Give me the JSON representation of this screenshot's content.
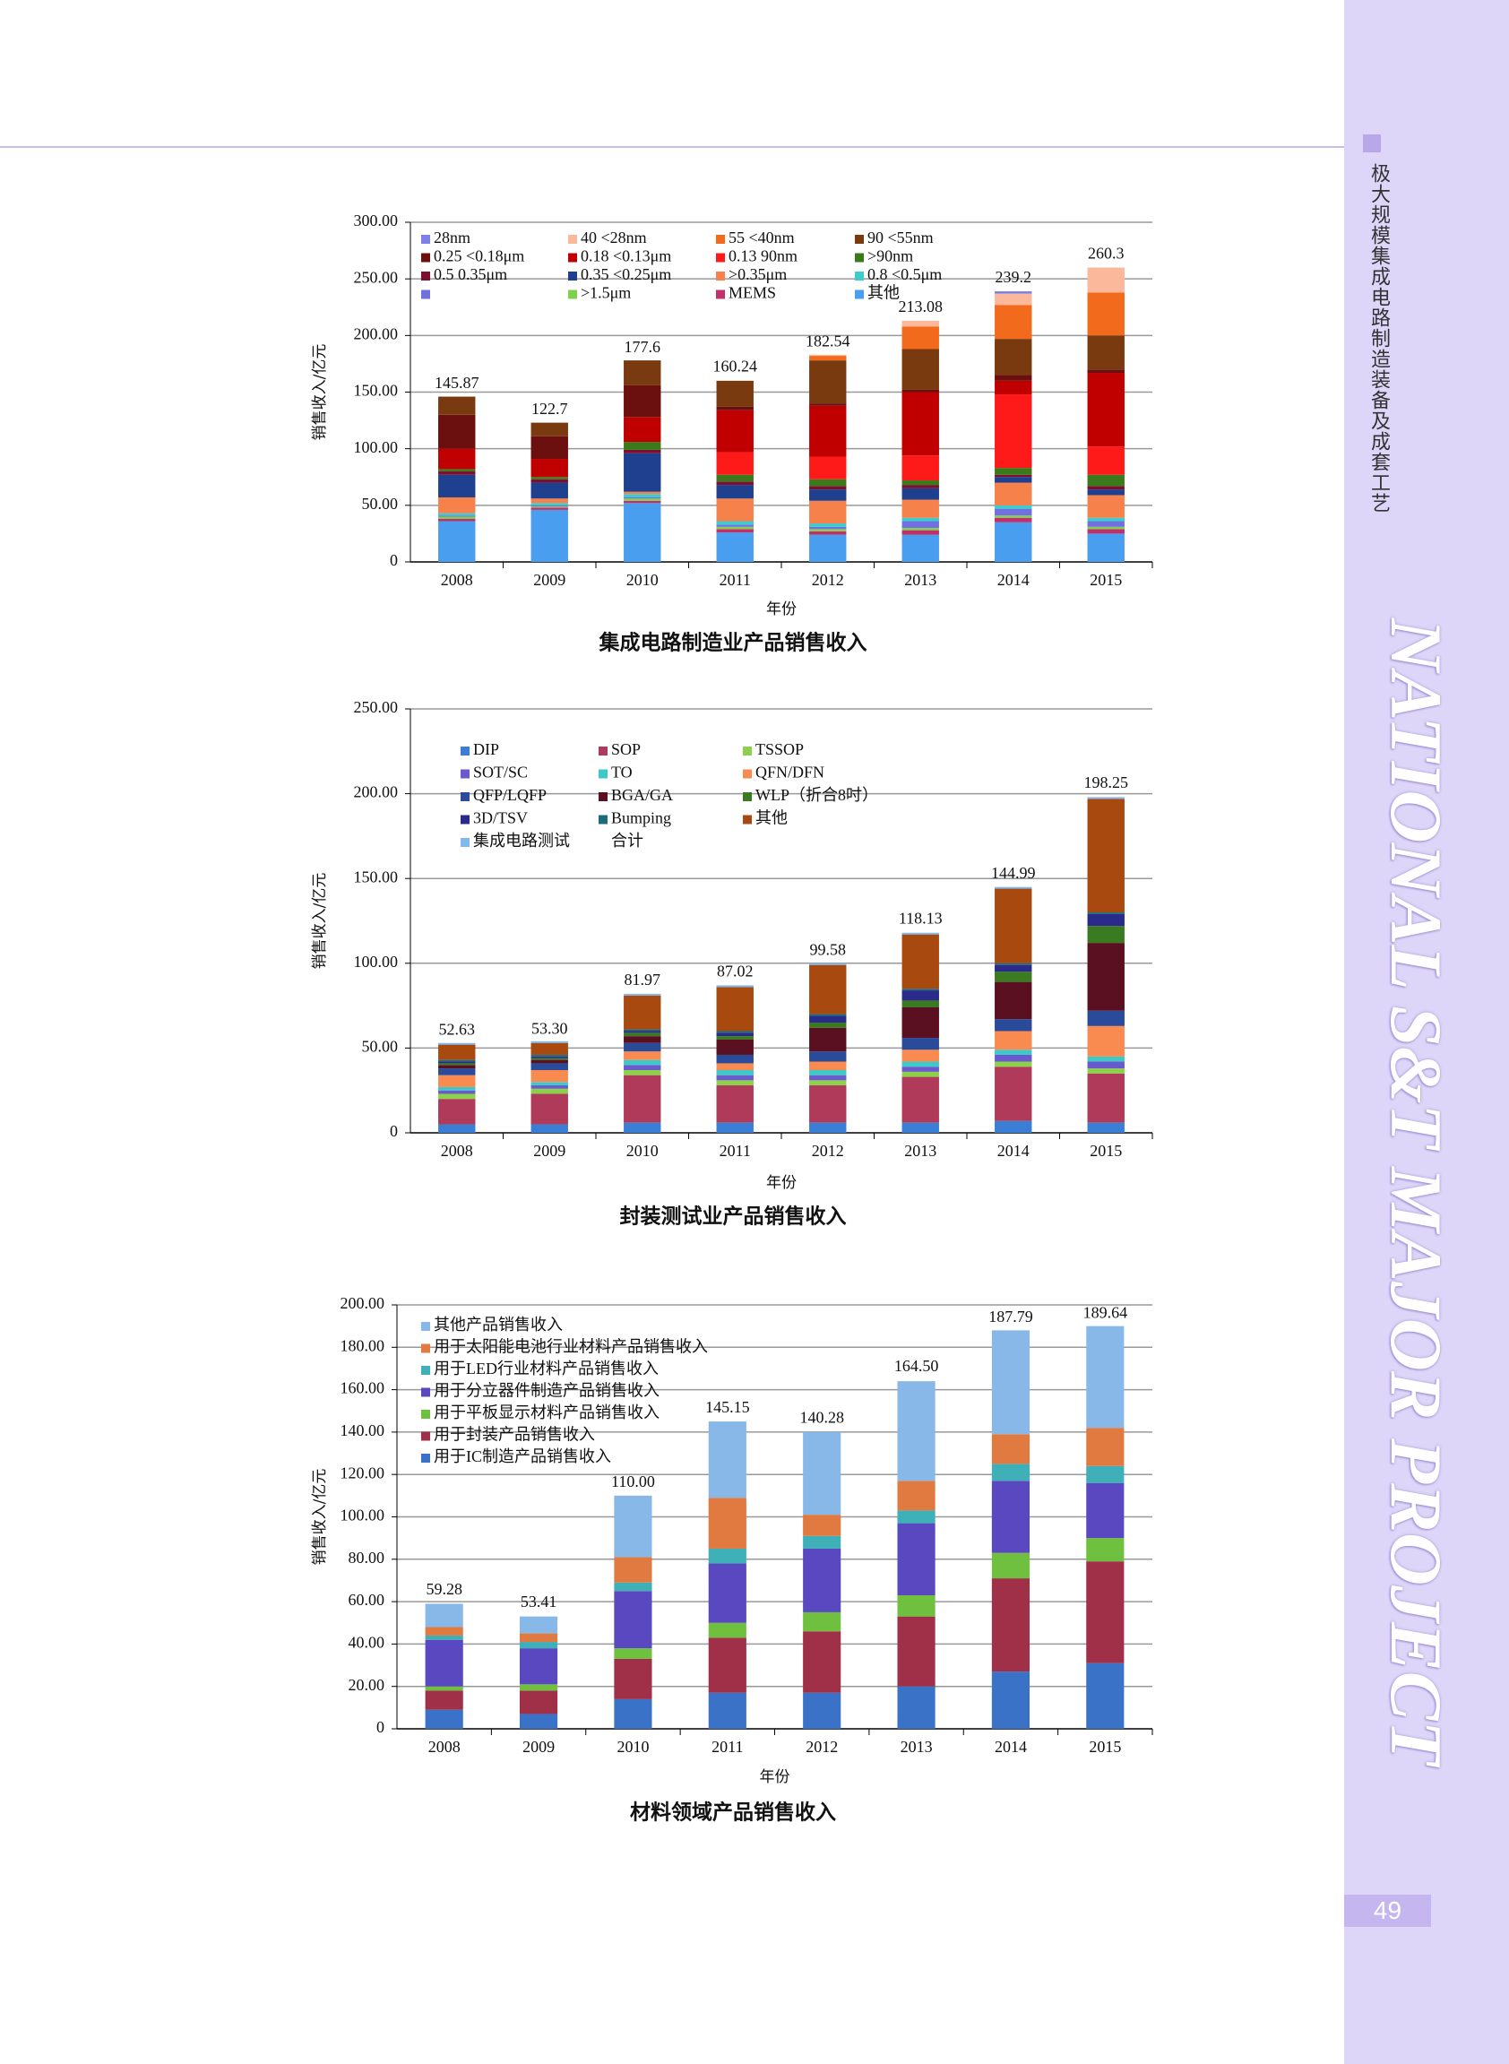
{
  "page": {
    "sidebar_title": "极大规模集成电路制造装备及成套工艺",
    "sidebar_banner": "NATIONAL S&T MAJOR PROJECT",
    "page_number": "49"
  },
  "chart_data": [
    {
      "type": "stacked_bar",
      "title": "集成电路制造业产品销售收入",
      "x_label": "年份",
      "y_label": "销售收入/亿元",
      "categories": [
        "2008",
        "2009",
        "2010",
        "2011",
        "2012",
        "2013",
        "2014",
        "2015"
      ],
      "ylim": [
        0,
        300
      ],
      "yticks": [
        0,
        {
          "value": 50,
          "label": "50.00"
        },
        {
          "value": 100,
          "label": "100.00"
        },
        {
          "value": 150,
          "label": "150.00"
        },
        {
          "value": 200,
          "label": "200.00"
        },
        {
          "value": 250,
          "label": "250.00"
        },
        {
          "value": 300,
          "label": "300.00"
        }
      ],
      "grid": true,
      "reverse_stack": true,
      "totals": [
        145.87,
        122.7,
        177.6,
        160.24,
        182.54,
        213.08,
        239.2,
        260.3
      ],
      "series": [
        {
          "name": "28nm",
          "color": "#7f7fe8",
          "values": [
            0,
            0,
            0,
            0,
            0,
            0,
            2,
            0
          ]
        },
        {
          "name": "40 <28nm",
          "color": "#fbb89a",
          "values": [
            0,
            0,
            0,
            0,
            1,
            5,
            10,
            22
          ]
        },
        {
          "name": "55 <40nm",
          "color": "#f26b1d",
          "values": [
            0,
            0,
            0,
            0,
            4,
            20,
            30,
            38
          ]
        },
        {
          "name": "90 <55nm",
          "color": "#7a3a10",
          "values": [
            16,
            12,
            22,
            23,
            38,
            36,
            32,
            30
          ]
        },
        {
          "name": "0.25 <0.18μm",
          "color": "#6b0f0f",
          "values": [
            30,
            20,
            28,
            3,
            2,
            2,
            5,
            3
          ]
        },
        {
          "name": "0.18 <0.13μm",
          "color": "#c00000",
          "values": [
            18,
            16,
            22,
            37,
            45,
            56,
            12,
            65
          ]
        },
        {
          "name": "0.13 90nm",
          "color": "#ff1a1a",
          "values": [
            0,
            0,
            0,
            20,
            20,
            22,
            65,
            25
          ]
        },
        {
          "name": ">90nm",
          "color": "#3a7a1a",
          "values": [
            2,
            2,
            7,
            6,
            6,
            4,
            6,
            10
          ]
        },
        {
          "name": "0.5 0.35μm",
          "color": "#7b1030",
          "values": [
            3,
            3,
            3,
            3,
            3,
            3,
            2,
            3
          ]
        },
        {
          "name": "0.35 <0.25μm",
          "color": "#1f3f8f",
          "values": [
            20,
            14,
            34,
            12,
            10,
            10,
            5,
            5
          ]
        },
        {
          "name": ">0.35μm",
          "color": "#f6814a",
          "values": [
            14,
            4,
            2,
            20,
            20,
            16,
            20,
            20
          ]
        },
        {
          "name": "0.8 <0.5μm",
          "color": "#3ccccc",
          "values": [
            2,
            2,
            3,
            3,
            3,
            3,
            3,
            3
          ]
        },
        {
          "name": null,
          "color": "#7070e0",
          "values": [
            1,
            1,
            1,
            2,
            2,
            6,
            6,
            5
          ]
        },
        {
          "name": ">1.5μm",
          "color": "#80d050",
          "values": [
            2,
            1,
            2,
            2,
            2,
            2,
            2,
            2
          ]
        },
        {
          "name": "MEMS",
          "color": "#c0306a",
          "values": [
            2,
            2,
            2,
            3,
            3,
            4,
            4,
            4
          ]
        },
        {
          "name": "其他",
          "color": "#4a9ef0",
          "values": [
            36,
            46,
            52,
            26,
            24,
            24,
            35,
            25
          ]
        }
      ]
    },
    {
      "type": "stacked_bar",
      "title": "封装测试业产品销售收入",
      "x_label": "年份",
      "y_label": "销售收入/亿元",
      "categories": [
        "2008",
        "2009",
        "2010",
        "2011",
        "2012",
        "2013",
        "2014",
        "2015"
      ],
      "ylim": [
        0,
        250
      ],
      "yticks": [
        0,
        {
          "value": 50,
          "label": "50.00"
        },
        {
          "value": 100,
          "label": "100.00"
        },
        {
          "value": 150,
          "label": "150.00"
        },
        {
          "value": 200,
          "label": "200.00"
        },
        {
          "value": 250,
          "label": "250.00"
        }
      ],
      "grid": true,
      "reverse_stack": false,
      "total_name": "合计",
      "totals": [
        52.63,
        53.3,
        81.97,
        87.02,
        99.58,
        118.13,
        144.99,
        198.25
      ],
      "total_labels": [
        "52.63",
        "53.30",
        "81.97",
        "87.02",
        "99.58",
        "118.13",
        "144.99",
        "198.25"
      ],
      "series": [
        {
          "name": "DIP",
          "color": "#3a7fd5",
          "values": [
            5,
            5,
            6,
            6,
            6,
            6,
            7,
            6
          ]
        },
        {
          "name": "SOP",
          "color": "#b03a5a",
          "values": [
            15,
            18,
            28,
            22,
            22,
            27,
            32,
            29
          ]
        },
        {
          "name": "TSSOP",
          "color": "#8dd04a",
          "values": [
            3,
            3,
            3,
            3,
            3,
            3,
            3,
            3
          ]
        },
        {
          "name": "SOT/SC",
          "color": "#6a5acd",
          "values": [
            2,
            2,
            3,
            3,
            3,
            3,
            4,
            4
          ]
        },
        {
          "name": "TO",
          "color": "#3fc8c8",
          "values": [
            2,
            2,
            3,
            3,
            3,
            3,
            3,
            3
          ]
        },
        {
          "name": "QFN/DFN",
          "color": "#f98a50",
          "values": [
            7,
            7,
            5,
            4,
            5,
            7,
            11,
            18
          ]
        },
        {
          "name": "QFP/LQFP",
          "color": "#2a4a9a",
          "values": [
            4,
            4,
            5,
            5,
            6,
            7,
            7,
            9
          ]
        },
        {
          "name": "BGA/GA",
          "color": "#5a1020",
          "values": [
            2,
            2,
            4,
            9,
            14,
            18,
            22,
            40
          ]
        },
        {
          "name": "WLP（折合8吋）",
          "color": "#3a7a20",
          "values": [
            1,
            1,
            2,
            2,
            3,
            4,
            6,
            10
          ]
        },
        {
          "name": "3D/TSV",
          "color": "#2a2a8a",
          "values": [
            1,
            1,
            1,
            2,
            4,
            6,
            4,
            7
          ]
        },
        {
          "name": "Bumping",
          "color": "#1f6a7a",
          "values": [
            1,
            1,
            1,
            1,
            1,
            1,
            1,
            1
          ]
        },
        {
          "name": "其他",
          "color": "#a84a10",
          "values": [
            9,
            7,
            20,
            26,
            29,
            32,
            44,
            67
          ]
        },
        {
          "name": "集成电路测试",
          "color": "#80b8f0",
          "values": [
            1,
            1,
            1,
            1,
            1,
            1,
            1,
            1
          ]
        }
      ]
    },
    {
      "type": "stacked_bar",
      "title": "材料领域产品销售收入",
      "x_label": "年份",
      "y_label": "销售收入/亿元",
      "categories": [
        "2008",
        "2009",
        "2010",
        "2011",
        "2012",
        "2013",
        "2014",
        "2015"
      ],
      "ylim": [
        0,
        200
      ],
      "yticks": [
        0,
        {
          "value": 20,
          "label": "20.00"
        },
        {
          "value": 40,
          "label": "40.00"
        },
        {
          "value": 60,
          "label": "60.00"
        },
        {
          "value": 80,
          "label": "80.00"
        },
        {
          "value": 100,
          "label": "100.00"
        },
        {
          "value": 120,
          "label": "120.00"
        },
        {
          "value": 140,
          "label": "140.00"
        },
        {
          "value": 160,
          "label": "160.00"
        },
        {
          "value": 180,
          "label": "180.00"
        },
        {
          "value": 200,
          "label": "200.00"
        }
      ],
      "grid": true,
      "reverse_stack": true,
      "totals": [
        59.28,
        53.41,
        110,
        145.15,
        140.28,
        164.5,
        187.79,
        189.64
      ],
      "total_labels": [
        "59.28",
        "53.41",
        "110.00",
        "145.15",
        "140.28",
        "164.50",
        "187.79",
        "189.64"
      ],
      "series": [
        {
          "name": "其他产品销售收入",
          "color": "#88b8e8",
          "values": [
            11,
            8,
            29,
            36,
            39,
            47,
            49,
            48
          ]
        },
        {
          "name": "用于太阳能电池行业材料产品销售收入",
          "color": "#e07a40",
          "values": [
            4,
            4,
            12,
            24,
            10,
            14,
            14,
            18
          ]
        },
        {
          "name": "用于LED行业材料产品销售收入",
          "color": "#40b0b8",
          "values": [
            2,
            3,
            4,
            7,
            6,
            6,
            8,
            8
          ]
        },
        {
          "name": "用于分立器件制造产品销售收入",
          "color": "#5a48c0",
          "values": [
            22,
            17,
            27,
            28,
            30,
            34,
            34,
            26
          ]
        },
        {
          "name": "用于平板显示材料产品销售收入",
          "color": "#70c040",
          "values": [
            2,
            3,
            5,
            7,
            9,
            10,
            12,
            11
          ]
        },
        {
          "name": "用于封装产品销售收入",
          "color": "#a03048",
          "values": [
            9,
            11,
            19,
            26,
            29,
            33,
            44,
            48
          ]
        },
        {
          "name": "用于IC制造产品销售收入",
          "color": "#3a72c8",
          "values": [
            9,
            7,
            14,
            17,
            17,
            20,
            27,
            31
          ]
        }
      ]
    }
  ]
}
